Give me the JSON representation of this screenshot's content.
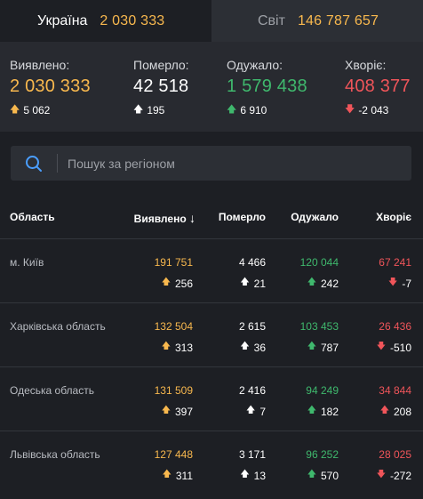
{
  "tabs": {
    "ukraine": {
      "name": "Україна",
      "count": "2 030 333"
    },
    "world": {
      "name": "Світ",
      "count": "146 787 657"
    }
  },
  "summary": {
    "confirmed": {
      "label": "Виявлено:",
      "value": "2 030 333",
      "delta": "5 062"
    },
    "deaths": {
      "label": "Померло:",
      "value": "42 518",
      "delta": "195"
    },
    "recovered": {
      "label": "Одужало:",
      "value": "1 579 438",
      "delta": "6 910"
    },
    "sick": {
      "label": "Хворіє:",
      "value": "408 377",
      "delta": "-2 043"
    }
  },
  "search": {
    "placeholder": "Пошук за регіоном"
  },
  "table": {
    "headers": {
      "region": "Область",
      "confirmed": "Виявлено",
      "deaths": "Померло",
      "recovered": "Одужало",
      "sick": "Хворіє"
    },
    "sort_arrow": "↓",
    "rows": [
      {
        "region": "м. Київ",
        "confirmed": "191 751",
        "confirmed_delta": "256",
        "deaths": "4 466",
        "deaths_delta": "21",
        "recovered": "120 044",
        "recovered_delta": "242",
        "sick": "67 241",
        "sick_delta": "-7"
      },
      {
        "region": "Харківська область",
        "confirmed": "132 504",
        "confirmed_delta": "313",
        "deaths": "2 615",
        "deaths_delta": "36",
        "recovered": "103 453",
        "recovered_delta": "787",
        "sick": "26 436",
        "sick_delta": "-510"
      },
      {
        "region": "Одеська область",
        "confirmed": "131 509",
        "confirmed_delta": "397",
        "deaths": "2 416",
        "deaths_delta": "7",
        "recovered": "94 249",
        "recovered_delta": "182",
        "sick": "34 844",
        "sick_delta": "208"
      },
      {
        "region": "Львівська область",
        "confirmed": "127 448",
        "confirmed_delta": "311",
        "deaths": "3 171",
        "deaths_delta": "13",
        "recovered": "96 252",
        "recovered_delta": "570",
        "sick": "28 025",
        "sick_delta": "-272"
      }
    ]
  },
  "colors": {
    "confirmed": "#f8b84e",
    "deaths": "#ffffff",
    "recovered": "#3fb86d",
    "sick": "#f0555a",
    "accent": "#4a9eff"
  },
  "icons": {
    "search": "search-icon",
    "up": "arrow-up-icon",
    "down": "arrow-down-icon"
  }
}
